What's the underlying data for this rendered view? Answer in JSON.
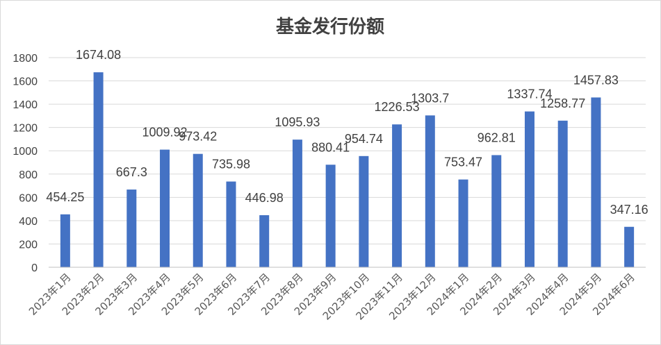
{
  "chart_data": {
    "type": "bar",
    "title": "基金发行份额",
    "xlabel": "",
    "ylabel": "",
    "ylim": [
      0,
      1800
    ],
    "yticks": [
      0,
      200,
      400,
      600,
      800,
      1000,
      1200,
      1400,
      1600,
      1800
    ],
    "grid": true,
    "legend": "none",
    "bar_color": "#4472C4",
    "categories": [
      "2023年1月",
      "2023年2月",
      "2023年3月",
      "2023年4月",
      "2023年5月",
      "2023年6月",
      "2023年7月",
      "2023年8月",
      "2023年9月",
      "2023年10月",
      "2023年11月",
      "2023年12月",
      "2024年1月",
      "2024年2月",
      "2024年3月",
      "2024年4月",
      "2024年5月",
      "2024年6月"
    ],
    "values": [
      454.25,
      1674.08,
      667.3,
      1009.92,
      973.42,
      735.98,
      446.98,
      1095.93,
      880.41,
      954.74,
      1226.53,
      1303.7,
      753.47,
      962.81,
      1337.74,
      1258.77,
      1457.83,
      347.16
    ],
    "data_labels": [
      "454.25",
      "1674.08",
      "667.3",
      "1009.92",
      "973.42",
      "735.98",
      "446.98",
      "1095.93",
      "880.41",
      "954.74",
      "1226.53",
      "1303.7",
      "753.47",
      "962.81",
      "1337.74",
      "1258.77",
      "1457.83",
      "347.16"
    ]
  }
}
